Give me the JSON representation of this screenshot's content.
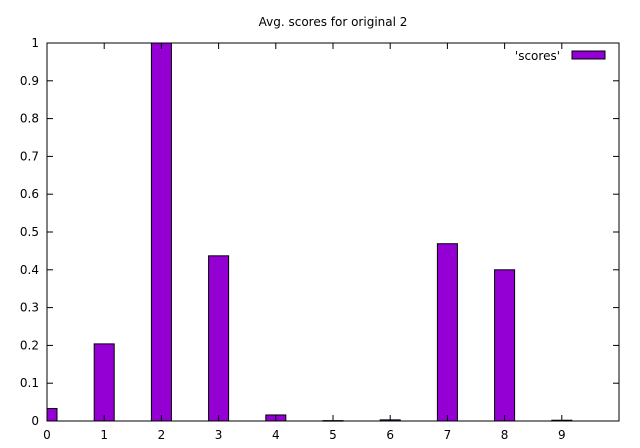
{
  "chart_data": {
    "type": "bar",
    "title": "Avg. scores for original 2",
    "xlabel": "",
    "ylabel": "",
    "categories": [
      "0",
      "1",
      "2",
      "3",
      "4",
      "5",
      "6",
      "7",
      "8",
      "9"
    ],
    "x": [
      0,
      1,
      2,
      3,
      4,
      5,
      6,
      7,
      8,
      9
    ],
    "series": [
      {
        "name": "'scores'",
        "values": [
          0.033,
          0.204,
          1.0,
          0.437,
          0.016,
          0.001,
          0.003,
          0.469,
          0.4,
          0.002
        ]
      }
    ],
    "xlim": [
      0,
      10
    ],
    "ylim": [
      0,
      1
    ],
    "yticks": [
      "0",
      "0.1",
      "0.2",
      "0.3",
      "0.4",
      "0.5",
      "0.6",
      "0.7",
      "0.8",
      "0.9",
      "1"
    ],
    "grid": false,
    "legend": "top-right",
    "colors": {
      "bar_fill": "#9400d3",
      "bar_stroke": "#000000",
      "axis": "#000000"
    }
  }
}
